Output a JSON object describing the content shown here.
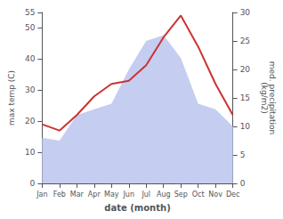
{
  "chart_data": {
    "type": "line",
    "xlabel": "date (month)",
    "ylabel": "max temp (C)",
    "y2label": "med. precipitation\n(kg/m2)",
    "categories": [
      "Jan",
      "Feb",
      "Mar",
      "Apr",
      "May",
      "Jun",
      "Jul",
      "Aug",
      "Sep",
      "Oct",
      "Nov",
      "Dec"
    ],
    "series": [
      {
        "type": "area",
        "axis": "y2",
        "color": "#c5cdf0",
        "values": [
          8,
          7.5,
          12,
          13,
          14,
          20,
          25,
          26,
          22,
          14,
          13,
          10
        ]
      },
      {
        "type": "line",
        "color": "#cc3333",
        "values": [
          19,
          17,
          22,
          28,
          32,
          33,
          38,
          47,
          54,
          44,
          32,
          22
        ]
      }
    ],
    "ylim": [
      0,
      55
    ],
    "yticks": [
      0,
      10,
      20,
      30,
      40,
      50
    ],
    "y2lim": [
      0,
      30
    ],
    "y2ticks": [
      0,
      5,
      10,
      15,
      20,
      25,
      30
    ],
    "grid": false
  }
}
